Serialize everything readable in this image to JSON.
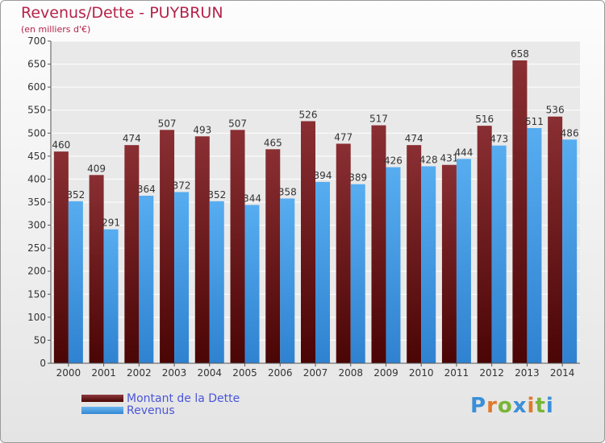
{
  "header": {
    "title": "Revenus/Dette - PUYBRUN",
    "subtitle": "(en milliers d'€)"
  },
  "legend": {
    "dette_label": "Montant de la Dette",
    "revenus_label": "Revenus"
  },
  "logo": {
    "text": "Proxiti",
    "colors": [
      "#3a8fd8",
      "#e0792a",
      "#79b536",
      "#3a8fd8",
      "#e0792a",
      "#79b536",
      "#3a8fd8"
    ]
  },
  "colors": {
    "dette": "#6a1518",
    "revenus": "#4aa3e6",
    "title": "#b5234a",
    "legend_text": "#4a55d8"
  },
  "chart_data": {
    "type": "bar",
    "title": "Revenus/Dette - PUYBRUN",
    "subtitle": "(en milliers d'€)",
    "categories": [
      "2000",
      "2001",
      "2002",
      "2003",
      "2004",
      "2005",
      "2006",
      "2007",
      "2008",
      "2009",
      "2010",
      "2011",
      "2012",
      "2013",
      "2014"
    ],
    "series": [
      {
        "name": "Montant de la Dette",
        "values": [
          460,
          409,
          474,
          507,
          493,
          507,
          465,
          526,
          477,
          517,
          474,
          431,
          516,
          658,
          536
        ]
      },
      {
        "name": "Revenus",
        "values": [
          352,
          291,
          364,
          372,
          352,
          344,
          358,
          394,
          389,
          426,
          428,
          444,
          473,
          511,
          486
        ]
      }
    ],
    "ylim": [
      0,
      700
    ],
    "yticks": [
      0,
      50,
      100,
      150,
      200,
      250,
      300,
      350,
      400,
      450,
      500,
      550,
      600,
      650,
      700
    ],
    "grid": true,
    "legend_position": "bottom-left"
  }
}
